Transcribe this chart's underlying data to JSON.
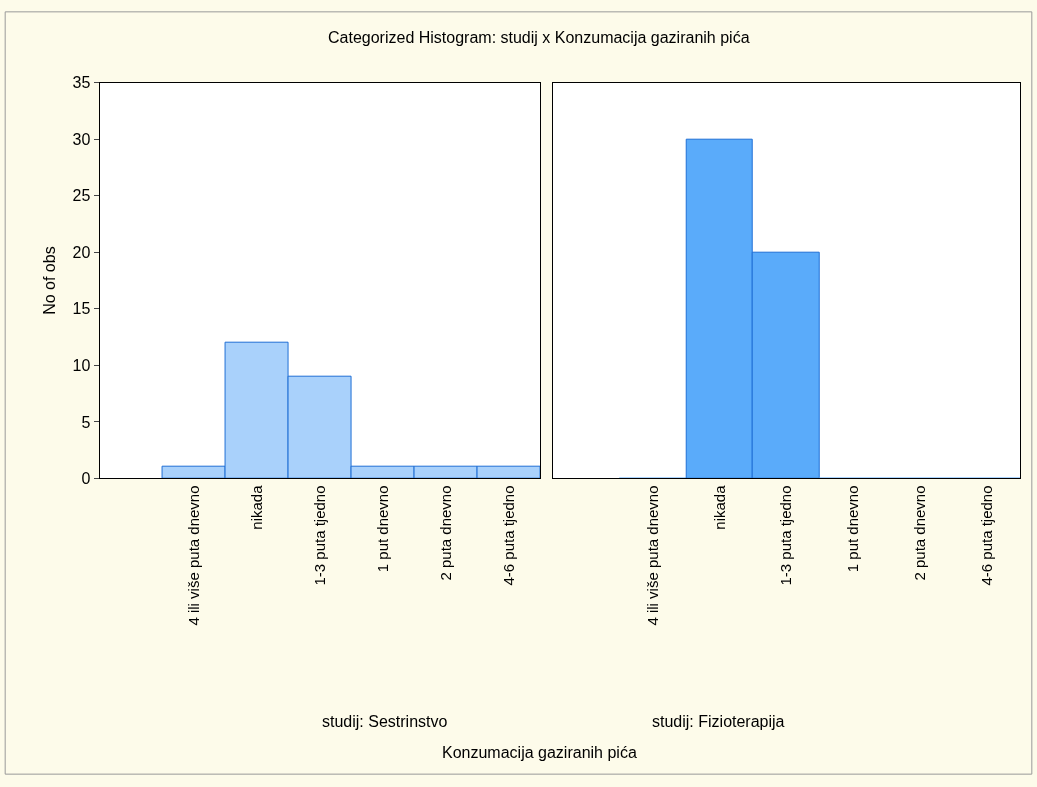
{
  "chart_data": [
    {
      "type": "bar",
      "title": "Categorized Histogram: studij x Konzumacija gaziranih pića",
      "xlabel": "studij: Sestrinstvo",
      "ylabel": "No of obs",
      "annotations": [
        "Konzumacija gaziranih pića"
      ],
      "categories": [
        "4 ili više puta dnevno",
        "nikada",
        "1-3 puta tjedno",
        "1 put dnevno",
        "2 puta dnevno",
        "4-6 puta tjedno"
      ],
      "series": [
        {
          "color": "#a9d1fb",
          "values": [
            1,
            12,
            9,
            1,
            1,
            1
          ]
        }
      ],
      "ylim": [
        0,
        35
      ],
      "yticks": [
        0,
        5,
        10,
        15,
        20,
        25,
        30,
        35
      ]
    },
    {
      "type": "bar",
      "xlabel": "studij: Fizioterapija",
      "categories": [
        "4 ili više puta dnevno",
        "nikada",
        "1-3 puta tjedno",
        "1 put dnevno",
        "2 puta dnevno",
        "4-6 puta tjedno"
      ],
      "series": [
        {
          "color": "#5aabfa",
          "values": [
            0,
            30,
            20,
            0,
            0,
            0
          ]
        }
      ],
      "ylim": [
        0,
        35
      ],
      "yticks": [
        0,
        5,
        10,
        15,
        20,
        25,
        30,
        35
      ],
      "tick_labels": "x"
    }
  ]
}
